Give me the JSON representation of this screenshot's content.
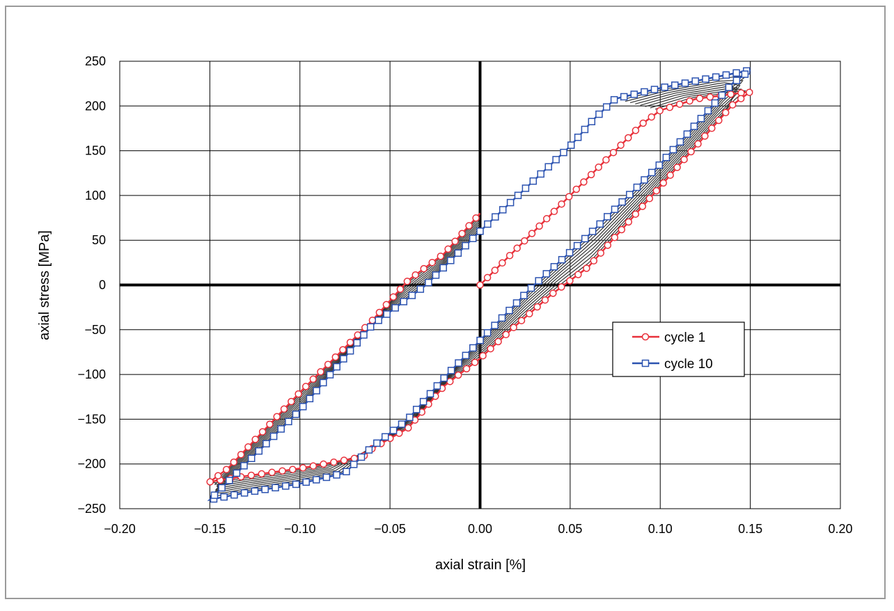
{
  "chart_data": {
    "type": "line",
    "title": "",
    "xlabel": "axial strain [%]",
    "ylabel": "axial stress [MPa]",
    "xlim": [
      -0.2,
      0.2
    ],
    "ylim": [
      -250,
      250
    ],
    "xticks": [
      -0.2,
      -0.15,
      -0.1,
      -0.05,
      0.0,
      0.05,
      0.1,
      0.15,
      0.2
    ],
    "xtick_labels": [
      "−0.20",
      "−0.15",
      "−0.10",
      "−0.05",
      "0.00",
      "0.05",
      "0.10",
      "0.15",
      "0.20"
    ],
    "yticks": [
      250,
      200,
      150,
      100,
      50,
      0,
      -50,
      -100,
      -150,
      -200,
      -250
    ],
    "ytick_labels": [
      "250",
      "200",
      "150",
      "100",
      "50",
      "0",
      "−50",
      "−100",
      "−150",
      "−200",
      "−250"
    ],
    "grid": true,
    "legend_position": "right",
    "intermediate_cycles_color": "#333333",
    "series": [
      {
        "name": "cycle 1",
        "color": "#e8303a",
        "marker": "circle",
        "x": [
          0,
          0.05,
          0.075,
          0.09,
          0.1,
          0.12,
          0.135,
          0.15,
          0.14,
          0.1,
          0.06,
          0.04,
          0.02,
          0.0,
          -0.02,
          -0.04,
          -0.06,
          -0.065,
          -0.1,
          -0.135,
          -0.15,
          -0.14,
          -0.1,
          -0.06,
          -0.04,
          -0.02,
          0.0
        ],
        "y": [
          0,
          100,
          150,
          180,
          195,
          208,
          212,
          216,
          201,
          110,
          20,
          -10,
          -45,
          -82,
          -113,
          -160,
          -183,
          -192,
          -205,
          -215,
          -220,
          -205,
          -120,
          -40,
          5,
          35,
          80
        ]
      },
      {
        "name": "cycle 10",
        "color": "#2b52b0",
        "marker": "square",
        "x": [
          0,
          0.05,
          0.063,
          0.075,
          0.1,
          0.13,
          0.15,
          0.14,
          0.1,
          0.06,
          0.03,
          0.0,
          -0.02,
          -0.04,
          -0.06,
          -0.075,
          -0.1,
          -0.13,
          -0.15,
          -0.14,
          -0.1,
          -0.06,
          -0.03,
          0.0
        ],
        "y": [
          60,
          155,
          185,
          208,
          220,
          232,
          240,
          225,
          135,
          55,
          0,
          -62,
          -104,
          -150,
          -181,
          -210,
          -222,
          -232,
          -240,
          -220,
          -140,
          -45,
          0,
          60
        ]
      }
    ]
  }
}
